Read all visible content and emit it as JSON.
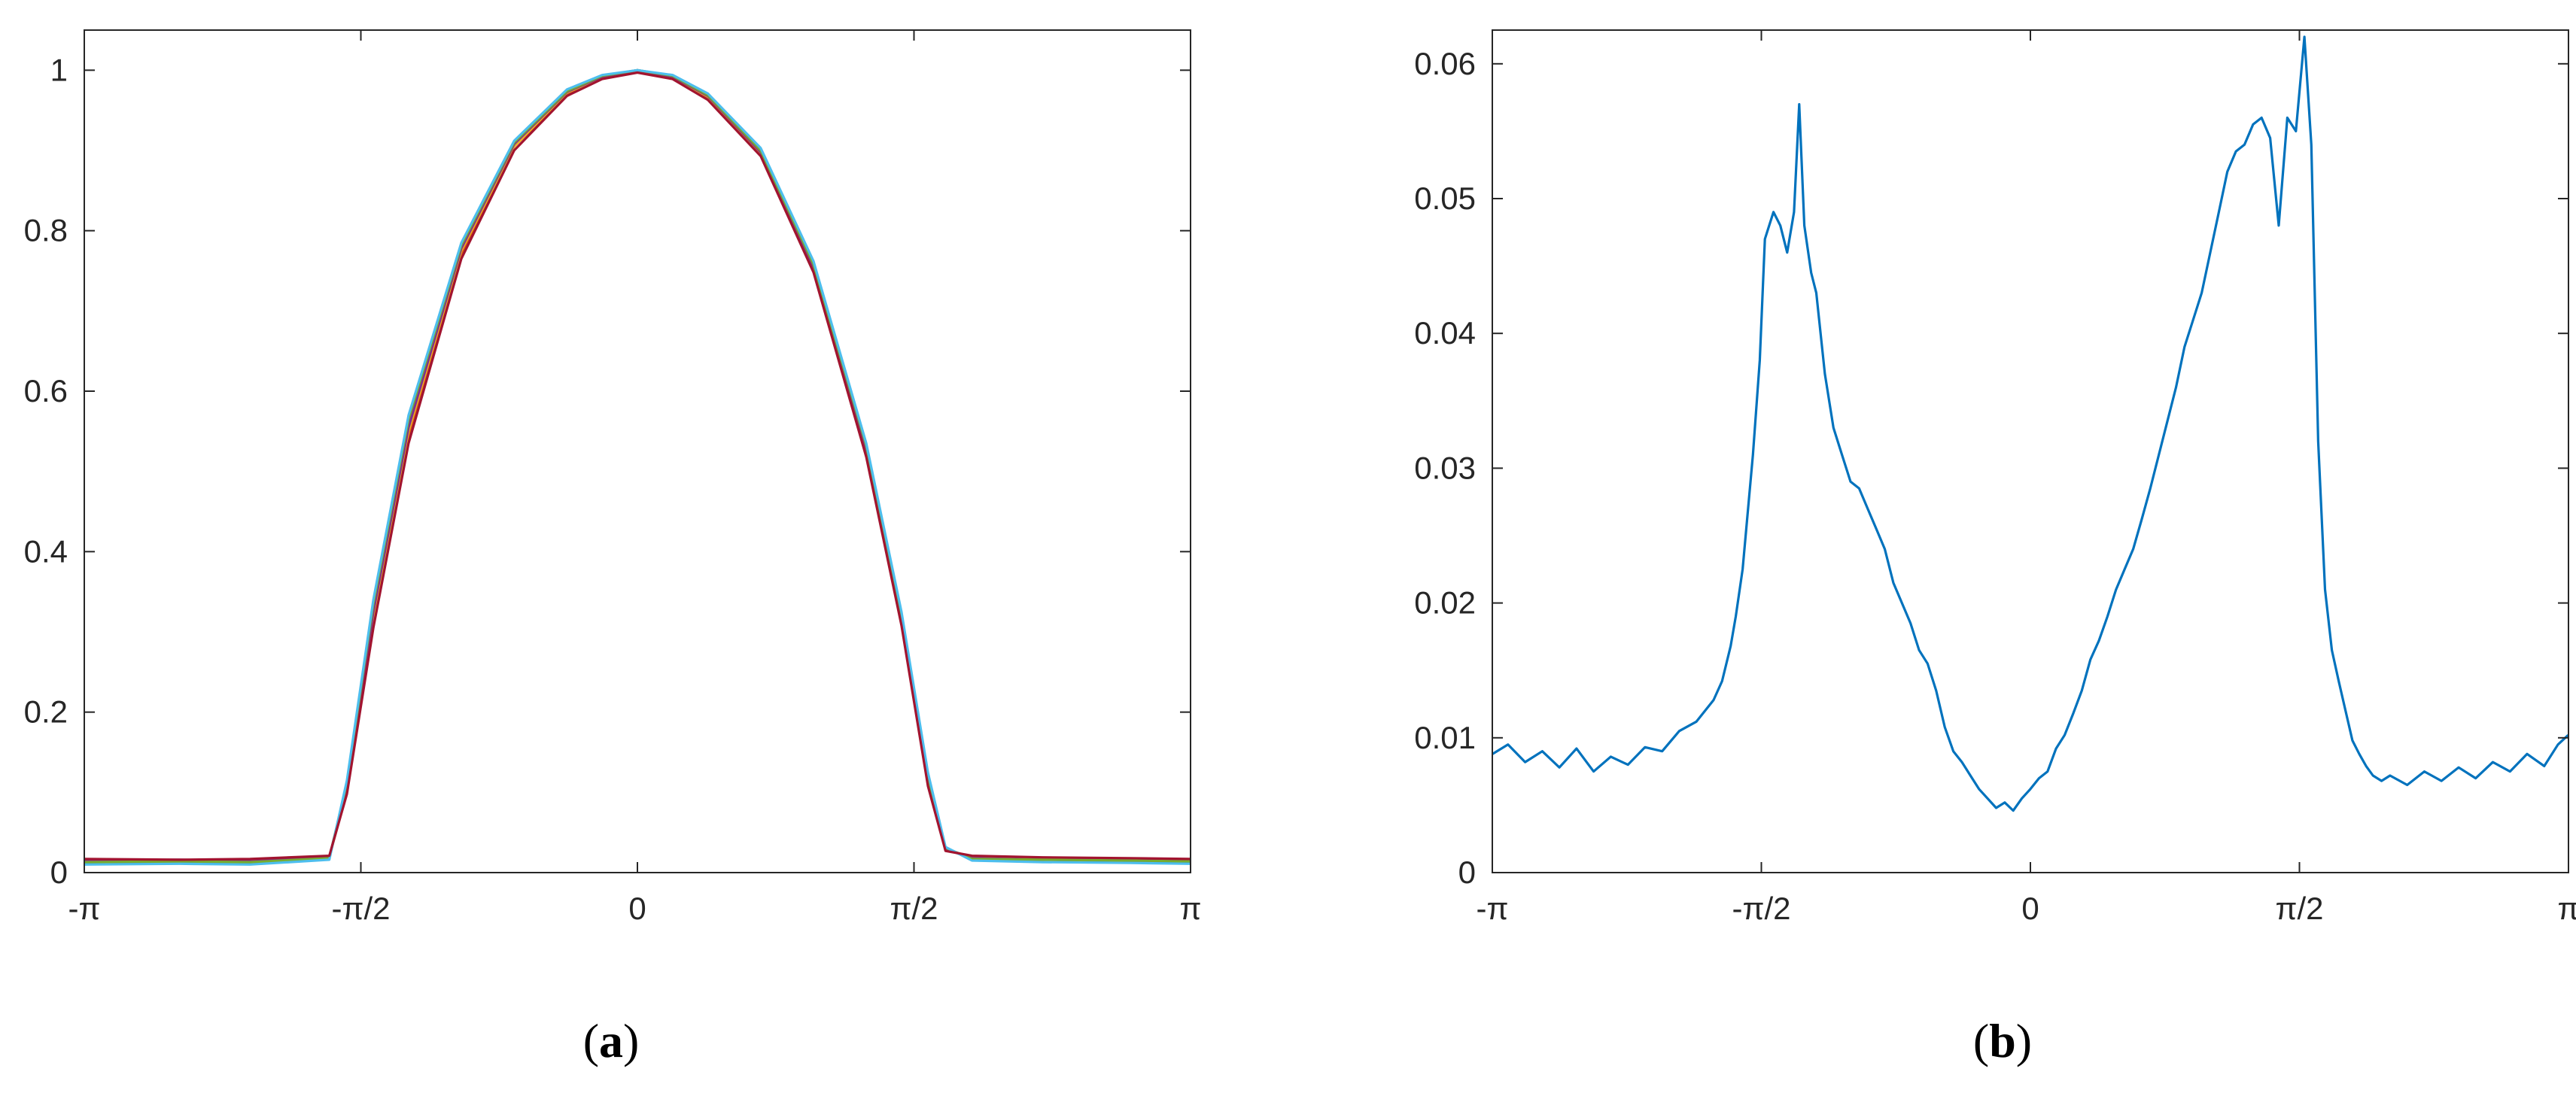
{
  "chart_data": [
    {
      "type": "line",
      "panel_label": "a",
      "title": "",
      "xlabel": "",
      "ylabel": "",
      "xlim": [
        -3.14159,
        3.14159
      ],
      "ylim": [
        0,
        1.05
      ],
      "x_ticks": [
        -3.14159,
        -1.5708,
        0,
        1.5708,
        3.14159
      ],
      "x_tick_labels": [
        "-π",
        "-π/2",
        "0",
        "π/2",
        "π"
      ],
      "y_ticks": [
        0,
        0.2,
        0.4,
        0.6,
        0.8,
        1
      ],
      "y_tick_labels": [
        "0",
        "0.2",
        "0.4",
        "0.6",
        "0.8",
        "1"
      ],
      "grid": false,
      "description_of_series": "overlapping profiles, flat near 0.015 outside ±π/2*1.1, cosine-like hump peaking at 1.0 at x=0",
      "series": [
        {
          "color": "#0072BD",
          "x": [
            -3.14159,
            -2.6,
            -2.2,
            -1.75,
            -1.65,
            -1.5,
            -1.3,
            -1.0,
            -0.7,
            -0.4,
            -0.2,
            0,
            0.2,
            0.4,
            0.7,
            1.0,
            1.3,
            1.5,
            1.65,
            1.75,
            1.9,
            2.3,
            2.8,
            3.14159
          ],
          "y": [
            0.012,
            0.013,
            0.012,
            0.018,
            0.11,
            0.33,
            0.56,
            0.78,
            0.91,
            0.975,
            0.993,
            1.0,
            0.993,
            0.97,
            0.9,
            0.76,
            0.53,
            0.32,
            0.12,
            0.03,
            0.017,
            0.016,
            0.014,
            0.013
          ]
        },
        {
          "color": "#D95319",
          "x": [
            -3.14159,
            -2.6,
            -2.2,
            -1.75,
            -1.65,
            -1.5,
            -1.3,
            -1.0,
            -0.7,
            -0.4,
            -0.2,
            0,
            0.2,
            0.4,
            0.7,
            1.0,
            1.3,
            1.5,
            1.65,
            1.75,
            1.9,
            2.3,
            2.8,
            3.14159
          ],
          "y": [
            0.016,
            0.015,
            0.016,
            0.02,
            0.1,
            0.31,
            0.54,
            0.77,
            0.905,
            0.97,
            0.99,
            0.998,
            0.99,
            0.965,
            0.895,
            0.75,
            0.52,
            0.31,
            0.11,
            0.028,
            0.02,
            0.018,
            0.017,
            0.016
          ]
        },
        {
          "color": "#EDB120",
          "x": [
            -3.14159,
            -2.6,
            -2.2,
            -1.75,
            -1.65,
            -1.5,
            -1.3,
            -1.0,
            -0.7,
            -0.4,
            -0.2,
            0,
            0.2,
            0.4,
            0.7,
            1.0,
            1.3,
            1.5,
            1.65,
            1.75,
            1.9,
            2.3,
            2.8,
            3.14159
          ],
          "y": [
            0.014,
            0.014,
            0.015,
            0.019,
            0.105,
            0.32,
            0.55,
            0.775,
            0.905,
            0.972,
            0.991,
            0.999,
            0.991,
            0.967,
            0.897,
            0.752,
            0.525,
            0.315,
            0.115,
            0.029,
            0.019,
            0.017,
            0.015,
            0.015
          ]
        },
        {
          "color": "#7E2F8E",
          "x": [
            -3.14159,
            -2.6,
            -2.2,
            -1.75,
            -1.65,
            -1.5,
            -1.3,
            -1.0,
            -0.7,
            -0.4,
            -0.2,
            0,
            0.2,
            0.4,
            0.7,
            1.0,
            1.3,
            1.5,
            1.65,
            1.75,
            1.9,
            2.3,
            2.8,
            3.14159
          ],
          "y": [
            0.015,
            0.016,
            0.014,
            0.019,
            0.108,
            0.325,
            0.555,
            0.778,
            0.908,
            0.973,
            0.992,
            1.0,
            0.992,
            0.968,
            0.898,
            0.755,
            0.528,
            0.318,
            0.118,
            0.03,
            0.018,
            0.016,
            0.016,
            0.015
          ]
        },
        {
          "color": "#77AC30",
          "x": [
            -3.14159,
            -2.6,
            -2.2,
            -1.75,
            -1.65,
            -1.5,
            -1.3,
            -1.0,
            -0.7,
            -0.4,
            -0.2,
            0,
            0.2,
            0.4,
            0.7,
            1.0,
            1.3,
            1.5,
            1.65,
            1.75,
            1.9,
            2.3,
            2.8,
            3.14159
          ],
          "y": [
            0.013,
            0.014,
            0.013,
            0.018,
            0.112,
            0.335,
            0.565,
            0.782,
            0.91,
            0.974,
            0.993,
            1.0,
            0.993,
            0.969,
            0.9,
            0.758,
            0.532,
            0.322,
            0.12,
            0.031,
            0.017,
            0.016,
            0.015,
            0.014
          ]
        },
        {
          "color": "#4DBEEE",
          "x": [
            -3.14159,
            -2.6,
            -2.2,
            -1.75,
            -1.65,
            -1.5,
            -1.3,
            -1.0,
            -0.7,
            -0.4,
            -0.2,
            0,
            0.2,
            0.4,
            0.7,
            1.0,
            1.3,
            1.5,
            1.65,
            1.75,
            1.9,
            2.3,
            2.8,
            3.14159
          ],
          "y": [
            0.01,
            0.011,
            0.01,
            0.016,
            0.115,
            0.34,
            0.57,
            0.785,
            0.912,
            0.976,
            0.994,
            1.0,
            0.994,
            0.971,
            0.903,
            0.762,
            0.535,
            0.325,
            0.125,
            0.032,
            0.015,
            0.013,
            0.012,
            0.011
          ]
        },
        {
          "color": "#A2142F",
          "x": [
            -3.14159,
            -2.6,
            -2.2,
            -1.75,
            -1.65,
            -1.5,
            -1.3,
            -1.0,
            -0.7,
            -0.4,
            -0.2,
            0,
            0.2,
            0.4,
            0.7,
            1.0,
            1.3,
            1.5,
            1.65,
            1.75,
            1.9,
            2.3,
            2.8,
            3.14159
          ],
          "y": [
            0.017,
            0.016,
            0.017,
            0.021,
            0.098,
            0.305,
            0.535,
            0.765,
            0.9,
            0.968,
            0.989,
            0.997,
            0.989,
            0.963,
            0.893,
            0.748,
            0.518,
            0.308,
            0.108,
            0.027,
            0.021,
            0.019,
            0.018,
            0.017
          ]
        }
      ]
    },
    {
      "type": "line",
      "panel_label": "b",
      "title": "",
      "xlabel": "",
      "ylabel": "",
      "xlim": [
        -3.14159,
        3.14159
      ],
      "ylim": [
        0,
        0.0625
      ],
      "x_ticks": [
        -3.14159,
        -1.5708,
        0,
        1.5708,
        3.14159
      ],
      "x_tick_labels": [
        "-π",
        "-π/2",
        "0",
        "π/2",
        "π"
      ],
      "y_ticks": [
        0,
        0.01,
        0.02,
        0.03,
        0.04,
        0.05,
        0.06
      ],
      "y_tick_labels": [
        "0",
        "0.01",
        "0.02",
        "0.03",
        "0.04",
        "0.05",
        "0.06"
      ],
      "grid": false,
      "series": [
        {
          "color": "#0072BD",
          "x": [
            -3.14,
            -3.05,
            -2.95,
            -2.85,
            -2.75,
            -2.65,
            -2.55,
            -2.45,
            -2.35,
            -2.25,
            -2.15,
            -2.05,
            -1.95,
            -1.85,
            -1.8,
            -1.75,
            -1.72,
            -1.68,
            -1.62,
            -1.58,
            -1.55,
            -1.5,
            -1.46,
            -1.42,
            -1.38,
            -1.35,
            -1.32,
            -1.28,
            -1.25,
            -1.2,
            -1.15,
            -1.1,
            -1.05,
            -1.0,
            -0.95,
            -0.9,
            -0.85,
            -0.8,
            -0.75,
            -0.7,
            -0.65,
            -0.6,
            -0.55,
            -0.5,
            -0.45,
            -0.4,
            -0.35,
            -0.3,
            -0.25,
            -0.2,
            -0.15,
            -0.1,
            -0.05,
            0.0,
            0.05,
            0.1,
            0.15,
            0.2,
            0.25,
            0.3,
            0.35,
            0.4,
            0.45,
            0.5,
            0.55,
            0.6,
            0.65,
            0.7,
            0.75,
            0.8,
            0.85,
            0.9,
            0.95,
            1.0,
            1.05,
            1.1,
            1.15,
            1.2,
            1.25,
            1.3,
            1.35,
            1.4,
            1.45,
            1.5,
            1.55,
            1.6,
            1.64,
            1.68,
            1.72,
            1.76,
            1.8,
            1.84,
            1.88,
            1.92,
            1.96,
            2.0,
            2.05,
            2.1,
            2.2,
            2.3,
            2.4,
            2.5,
            2.6,
            2.7,
            2.8,
            2.9,
            3.0,
            3.08,
            3.14
          ],
          "y": [
            0.0088,
            0.0095,
            0.0082,
            0.009,
            0.0078,
            0.0092,
            0.0075,
            0.0086,
            0.008,
            0.0093,
            0.009,
            0.0105,
            0.0112,
            0.0128,
            0.0142,
            0.0168,
            0.019,
            0.0225,
            0.031,
            0.038,
            0.047,
            0.049,
            0.048,
            0.046,
            0.049,
            0.057,
            0.048,
            0.0445,
            0.043,
            0.037,
            0.033,
            0.031,
            0.029,
            0.0285,
            0.027,
            0.0255,
            0.024,
            0.0215,
            0.02,
            0.0185,
            0.0165,
            0.0155,
            0.0135,
            0.0108,
            0.009,
            0.0082,
            0.0072,
            0.0062,
            0.0055,
            0.0048,
            0.0052,
            0.0046,
            0.0055,
            0.0062,
            0.007,
            0.0075,
            0.0092,
            0.0102,
            0.0118,
            0.0135,
            0.0158,
            0.0172,
            0.019,
            0.021,
            0.0225,
            0.024,
            0.0262,
            0.0285,
            0.031,
            0.0335,
            0.036,
            0.039,
            0.041,
            0.043,
            0.046,
            0.049,
            0.052,
            0.0535,
            0.054,
            0.0555,
            0.056,
            0.0545,
            0.048,
            0.056,
            0.055,
            0.062,
            0.054,
            0.032,
            0.021,
            0.0165,
            0.0142,
            0.012,
            0.0098,
            0.0088,
            0.0079,
            0.0072,
            0.0068,
            0.0072,
            0.0065,
            0.0075,
            0.0068,
            0.0078,
            0.007,
            0.0082,
            0.0075,
            0.0088,
            0.0079,
            0.0095,
            0.0102
          ]
        }
      ]
    }
  ],
  "captions": {
    "a": "a",
    "b": "b"
  }
}
